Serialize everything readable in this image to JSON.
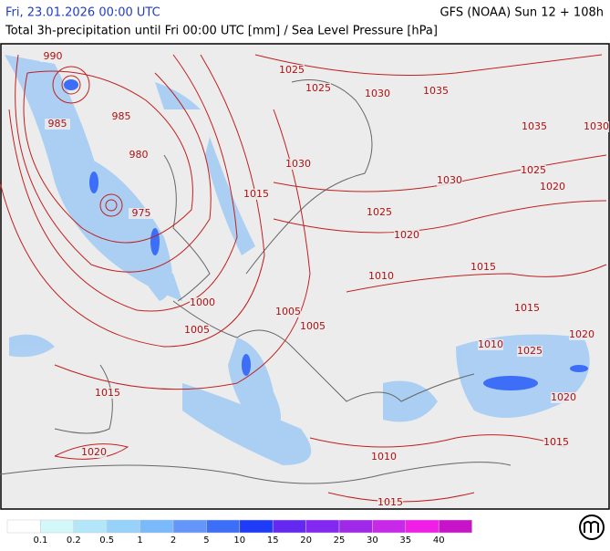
{
  "header": {
    "left_title": "Fri, 23.01.2026 00:00 UTC",
    "right_title": "GFS (NOAA) Sun 12 + 108h",
    "subtitle": "Total 3h-precipitation until Fri 00:00 UTC [mm] / Sea Level Pressure [hPa]"
  },
  "map": {
    "isobar_labels": [
      990,
      985,
      985,
      980,
      975,
      1025,
      1025,
      1030,
      1035,
      1035,
      1030,
      1030,
      1025,
      1020,
      1030,
      1015,
      1025,
      1020,
      1015,
      1010,
      1000,
      1005,
      1005,
      1005,
      1015,
      1020,
      1010,
      1025,
      1015,
      1020,
      1015,
      1020,
      1010,
      1015
    ]
  },
  "legend": {
    "labels": [
      0.1,
      0.2,
      0.5,
      1,
      2,
      5,
      10,
      15,
      20,
      25,
      30,
      35,
      40
    ],
    "colors": [
      "#ffffff",
      "#d2f8fa",
      "#b4e6fa",
      "#96d2fa",
      "#7ab9fa",
      "#6496fa",
      "#3c6ef8",
      "#1e3cf8",
      "#6428f0",
      "#8228f0",
      "#a028e8",
      "#c828e8",
      "#f01ee6",
      "#c814c8"
    ]
  }
}
